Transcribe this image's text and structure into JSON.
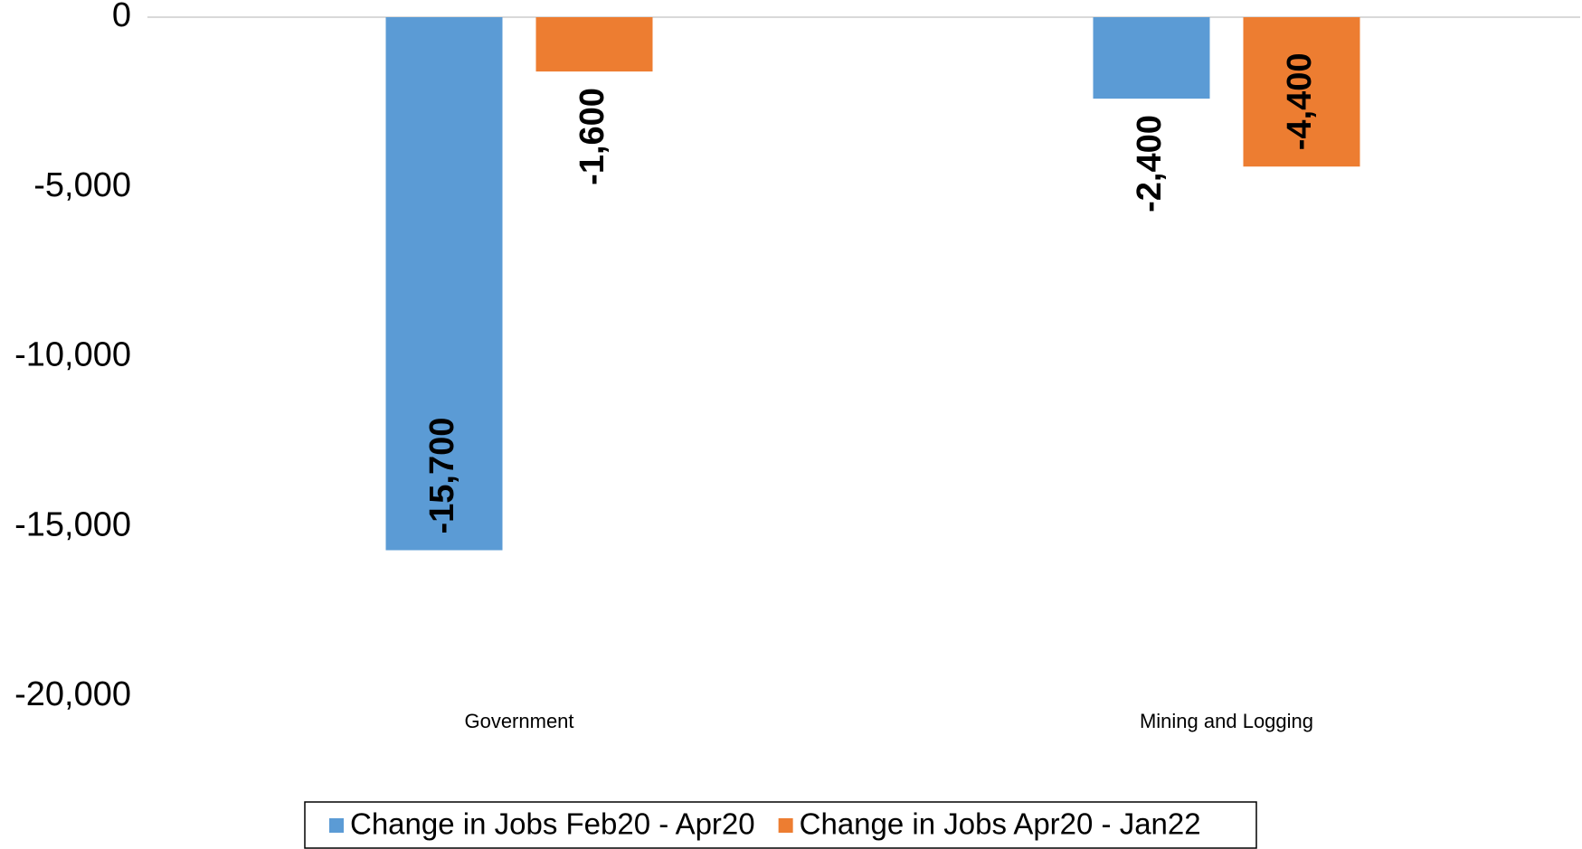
{
  "chart_data": {
    "type": "bar",
    "categories": [
      "Government",
      "Mining and Logging"
    ],
    "series": [
      {
        "name": "Change in Jobs Feb20 - Apr20",
        "color": "#5b9bd5",
        "values": [
          -15700,
          -2400
        ],
        "value_labels": [
          "-15,700",
          "-2,400"
        ]
      },
      {
        "name": "Change in Jobs Apr20 - Jan22",
        "color": "#ed7d31",
        "values": [
          -1600,
          -4400
        ],
        "value_labels": [
          "-1,600",
          "-4,400"
        ]
      }
    ],
    "ylim": [
      -20000,
      0
    ],
    "yticks": [
      0,
      {
        "value": -5000,
        "label": "-5,000"
      },
      {
        "value": -10000,
        "label": "-10,000"
      },
      {
        "value": -15000,
        "label": "-15,000"
      },
      {
        "value": -20000,
        "label": "-20,000"
      }
    ],
    "grid": false,
    "legend": "bottom"
  }
}
